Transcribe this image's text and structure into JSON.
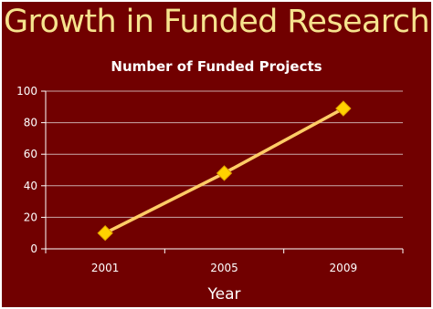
{
  "slide": {
    "title": "Growth in Funded Research",
    "background": "#710000",
    "title_color": "#f6e38e"
  },
  "chart_data": {
    "type": "line",
    "title": "Number of Funded Projects",
    "categories": [
      "2001",
      "2005",
      "2009"
    ],
    "series": [
      {
        "values": [
          10,
          48,
          89
        ],
        "color": "#ffcc66",
        "marker": "diamond",
        "marker_color": "#ffd200"
      }
    ],
    "xlabel": "Year",
    "ylabel": "",
    "ylim": [
      0,
      100
    ],
    "yticks": [
      0,
      20,
      40,
      60,
      80,
      100
    ],
    "grid": true,
    "legend": "none"
  }
}
